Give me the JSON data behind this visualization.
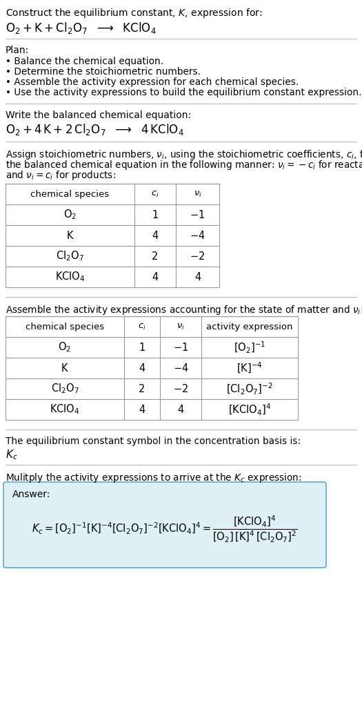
{
  "bg_color": "#ffffff",
  "text_color": "#000000",
  "title_line1": "Construct the equilibrium constant, $K$, expression for:",
  "title_line2_parts": [
    "$\\mathrm{O_2 + K + Cl_2O_7}$",
    " $\\longrightarrow$ ",
    "$\\mathrm{KClO_4}$"
  ],
  "plan_header": "Plan:",
  "plan_bullets": [
    "Balance the chemical equation.",
    "Determine the stoichiometric numbers.",
    "Assemble the activity expression for each chemical species.",
    "Use the activity expressions to build the equilibrium constant expression."
  ],
  "balanced_header": "Write the balanced chemical equation:",
  "balanced_eq_parts": [
    "$\\mathrm{O_2 + 4\\,K + 2\\,Cl_2O_7}$",
    " $\\longrightarrow$ ",
    "$\\mathrm{4\\,KClO_4}$"
  ],
  "stoich_intro_lines": [
    "Assign stoichiometric numbers, $\\nu_i$, using the stoichiometric coefficients, $c_i$, from",
    "the balanced chemical equation in the following manner: $\\nu_i = -c_i$ for reactants",
    "and $\\nu_i = c_i$ for products:"
  ],
  "table1_headers": [
    "chemical species",
    "$c_i$",
    "$\\nu_i$"
  ],
  "table1_rows": [
    [
      "$\\mathrm{O_2}$",
      "1",
      "$-1$"
    ],
    [
      "$\\mathrm{K}$",
      "4",
      "$-4$"
    ],
    [
      "$\\mathrm{Cl_2O_7}$",
      "2",
      "$-2$"
    ],
    [
      "$\\mathrm{KClO_4}$",
      "4",
      "4"
    ]
  ],
  "activity_intro": "Assemble the activity expressions accounting for the state of matter and $\\nu_i$:",
  "table2_headers": [
    "chemical species",
    "$c_i$",
    "$\\nu_i$",
    "activity expression"
  ],
  "table2_rows": [
    [
      "$\\mathrm{O_2}$",
      "1",
      "$-1$",
      "$[\\mathrm{O_2}]^{-1}$"
    ],
    [
      "$\\mathrm{K}$",
      "4",
      "$-4$",
      "$[\\mathrm{K}]^{-4}$"
    ],
    [
      "$\\mathrm{Cl_2O_7}$",
      "2",
      "$-2$",
      "$[\\mathrm{Cl_2O_7}]^{-2}$"
    ],
    [
      "$\\mathrm{KClO_4}$",
      "4",
      "4",
      "$[\\mathrm{KClO_4}]^{4}$"
    ]
  ],
  "kc_intro": "The equilibrium constant symbol in the concentration basis is:",
  "kc_symbol": "$K_c$",
  "multiply_intro": "Mulitply the activity expressions to arrive at the $K_c$ expression:",
  "answer_label": "Answer:",
  "answer_box_color": "#dff0f7",
  "answer_box_border": "#5aabcb",
  "fig_width": 5.25,
  "fig_height": 10.18,
  "dpi": 100
}
